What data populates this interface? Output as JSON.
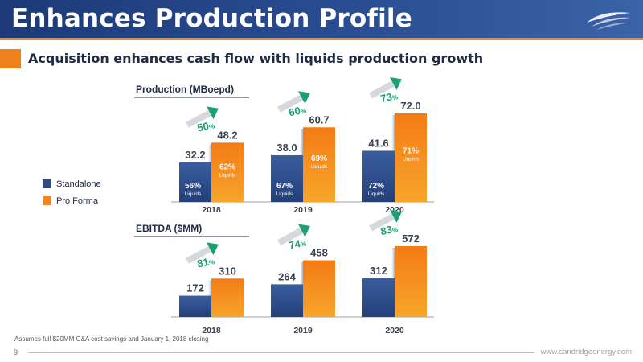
{
  "slide": {
    "title": "Enhances Production Profile",
    "subtitle": "Acquisition enhances cash flow with liquids production growth",
    "footnote": "Assumes full $20MM G&A cost savings and January 1, 2018 closing",
    "page_number": "9",
    "url": "www.sandridgeenergy.com"
  },
  "legend": {
    "items": [
      {
        "label": "Standalone",
        "color": "#2e4b86"
      },
      {
        "label": "Pro Forma",
        "color": "#f58220"
      }
    ],
    "placement": "left"
  },
  "colors": {
    "standalone": "#2e4b86",
    "pro_forma": "#f58220",
    "growth_arrow": "#1e9e73",
    "growth_text": "#1e9e73"
  },
  "chart_data": [
    {
      "type": "bar",
      "title": "Production (MBoepd)",
      "categories": [
        "2018",
        "2019",
        "2020"
      ],
      "ylim": [
        0,
        80
      ],
      "series": [
        {
          "name": "Standalone",
          "values": [
            32.2,
            38.0,
            41.6
          ],
          "value_labels": [
            "32.2",
            "38.0",
            "41.6"
          ],
          "liquids_pct": [
            "56",
            "67",
            "72"
          ]
        },
        {
          "name": "Pro Forma",
          "values": [
            48.2,
            60.7,
            72.0
          ],
          "value_labels": [
            "48.2",
            "60.7",
            "72.0"
          ],
          "liquids_pct": [
            "62",
            "69",
            "71"
          ]
        }
      ],
      "liquids_word": "Liquids",
      "growth": [
        "50",
        "60",
        "73"
      ],
      "growth_unit": "%"
    },
    {
      "type": "bar",
      "title": "EBITDA ($MM)",
      "categories": [
        "2018",
        "2019",
        "2020"
      ],
      "ylim": [
        0,
        640
      ],
      "series": [
        {
          "name": "Standalone",
          "values": [
            172,
            264,
            312
          ],
          "value_labels": [
            "172",
            "264",
            "312"
          ]
        },
        {
          "name": "Pro Forma",
          "values": [
            310,
            458,
            572
          ],
          "value_labels": [
            "310",
            "458",
            "572"
          ]
        }
      ],
      "growth": [
        "81",
        "74",
        "83"
      ],
      "growth_unit": "%"
    }
  ]
}
